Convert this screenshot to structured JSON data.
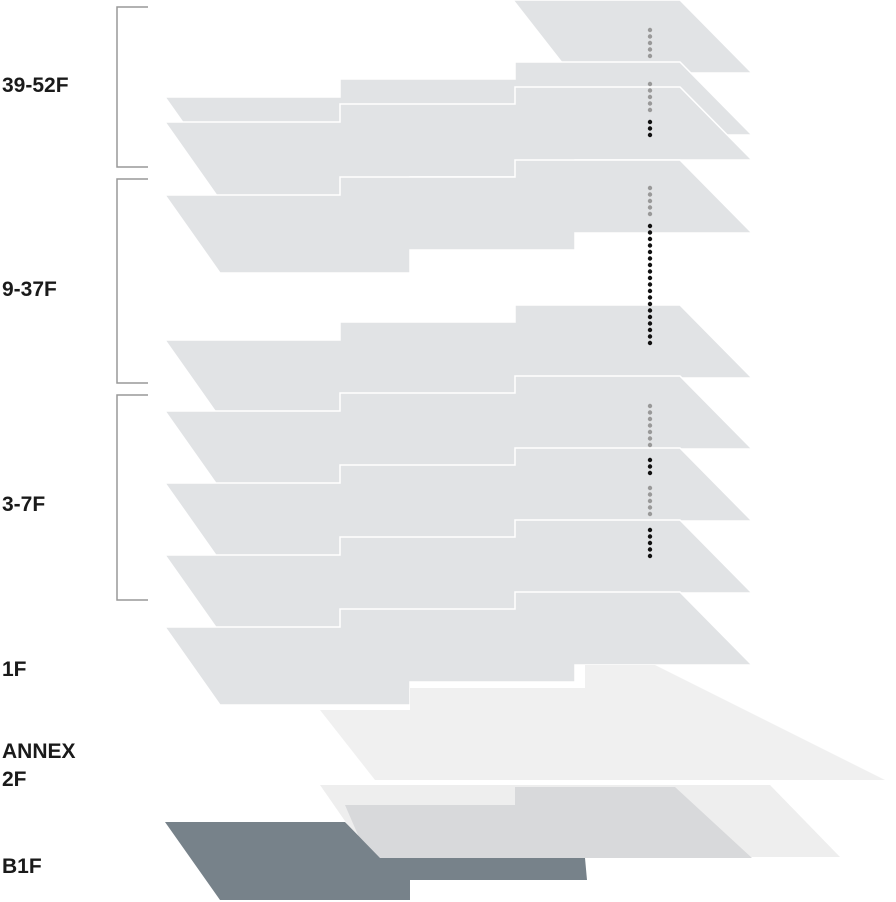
{
  "floors": [
    {
      "lines": [
        "39-52F"
      ]
    },
    {
      "lines": [
        "9-37F"
      ]
    },
    {
      "lines": [
        "3-7F"
      ]
    },
    {
      "lines": [
        "1F"
      ]
    },
    {
      "lines": [
        "ANNEX",
        "2F"
      ]
    },
    {
      "lines": [
        "B1F"
      ]
    }
  ]
}
